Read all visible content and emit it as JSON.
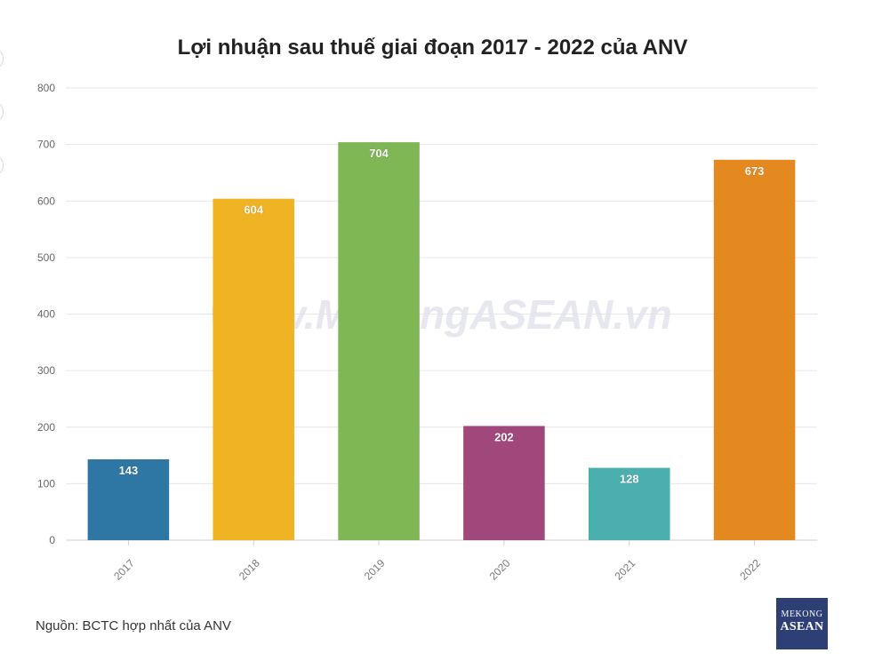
{
  "chart_data": {
    "type": "bar",
    "title": "Lợi nhuận sau thuế giai đoạn 2017 - 2022 của ANV",
    "categories": [
      "2017",
      "2018",
      "2019",
      "2020",
      "2021",
      "2022"
    ],
    "values": [
      143,
      604,
      704,
      202,
      128,
      673
    ],
    "data_labels": [
      "143",
      "604",
      "704",
      "202",
      "128",
      "673"
    ],
    "colors": [
      "#2e77a5",
      "#f0b323",
      "#7fb755",
      "#a0487c",
      "#4cafaf",
      "#e4891f"
    ],
    "ylim": [
      0,
      800
    ],
    "yticks": [
      "0",
      "100",
      "200",
      "300",
      "400",
      "500",
      "600",
      "700",
      "800"
    ],
    "grid": true,
    "legend": "none"
  },
  "watermark": "www.MekongASEAN.vn",
  "source": "Nguồn: BCTC hợp nhất của ANV",
  "logo": {
    "top": "MEKONG",
    "bottom": "ASEAN"
  }
}
